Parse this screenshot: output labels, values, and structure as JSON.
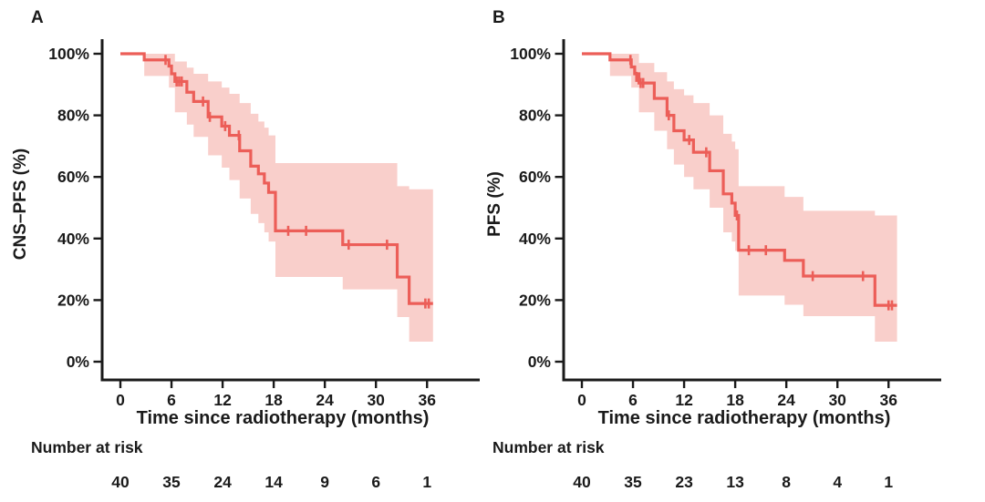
{
  "colors": {
    "curve": "#EC5E58",
    "band": "#F9CFCB",
    "axis": "#1A1A1A",
    "text": "#1A1A1A",
    "background": "#FFFFFF"
  },
  "chart_data": [
    {
      "type": "line",
      "subtype": "kaplan-meier-step",
      "panel": "A",
      "ylabel": "CNS–PFS (%)",
      "xlabel": "Time since radiotherapy (months)",
      "xlim": [
        0,
        42
      ],
      "ylim": [
        0,
        100
      ],
      "x_ticks": {
        "values": [
          0,
          6,
          12,
          18,
          24,
          30,
          36
        ],
        "labels": [
          "0",
          "6",
          "12",
          "18",
          "24",
          "30",
          "36"
        ]
      },
      "y_ticks": {
        "values": [
          100,
          80,
          60,
          40,
          20,
          0
        ],
        "labels": [
          "100%",
          "80%",
          "60%",
          "40%",
          "20%",
          "0%"
        ]
      },
      "grid": false,
      "legend": false,
      "series": [
        {
          "name": "CNS-PFS KM estimate",
          "steps": [
            [
              0,
              100
            ],
            [
              2.8,
              98
            ],
            [
              5.7,
              96
            ],
            [
              6.0,
              93.5
            ],
            [
              6.4,
              91
            ],
            [
              7.8,
              87.5
            ],
            [
              8.6,
              84.5
            ],
            [
              10.3,
              79.5
            ],
            [
              11.9,
              76.5
            ],
            [
              12.8,
              73.5
            ],
            [
              14.0,
              68.5
            ],
            [
              15.3,
              63.5
            ],
            [
              16.2,
              61
            ],
            [
              16.9,
              58
            ],
            [
              17.4,
              55
            ],
            [
              18.2,
              42.5
            ],
            [
              26.1,
              38
            ],
            [
              32.5,
              27.5
            ],
            [
              33.9,
              18.9
            ]
          ],
          "end_time": 36.7,
          "censor_marks": [
            [
              5.3,
              98
            ],
            [
              6.6,
              91
            ],
            [
              6.9,
              91
            ],
            [
              7.2,
              91
            ],
            [
              9.7,
              84.5
            ],
            [
              10.5,
              79.5
            ],
            [
              12.3,
              76.5
            ],
            [
              13.9,
              73.5
            ],
            [
              19.7,
              42.5
            ],
            [
              21.8,
              42.5
            ],
            [
              26.8,
              38
            ],
            [
              31.3,
              38
            ],
            [
              35.8,
              18.9
            ],
            [
              36.2,
              18.9
            ]
          ],
          "ci": [
            [
              0,
              100,
              100
            ],
            [
              2.8,
              92.8,
              100
            ],
            [
              5.7,
              89,
              100
            ],
            [
              6.4,
              81,
              97.5
            ],
            [
              7.8,
              77,
              95.5
            ],
            [
              8.6,
              73,
              93.5
            ],
            [
              10.3,
              67,
              91
            ],
            [
              11.9,
              63,
              89
            ],
            [
              12.8,
              59,
              87
            ],
            [
              14.0,
              53,
              84
            ],
            [
              15.3,
              48,
              80.5
            ],
            [
              16.2,
              45,
              78
            ],
            [
              16.9,
              42,
              76
            ],
            [
              17.4,
              39,
              73.5
            ],
            [
              18.2,
              27.5,
              64.5
            ],
            [
              26.1,
              23.5,
              64.5
            ],
            [
              32.5,
              14.5,
              57
            ],
            [
              33.9,
              6.5,
              56
            ]
          ]
        }
      ],
      "number_at_risk": {
        "label": "Number at risk",
        "times": [
          0,
          6,
          12,
          18,
          24,
          30,
          36
        ],
        "counts": [
          "40",
          "35",
          "24",
          "14",
          "9",
          "6",
          "1"
        ]
      }
    },
    {
      "type": "line",
      "subtype": "kaplan-meier-step",
      "panel": "B",
      "ylabel": "PFS (%)",
      "xlabel": "Time since radiotherapy (months)",
      "xlim": [
        0,
        42
      ],
      "ylim": [
        0,
        100
      ],
      "x_ticks": {
        "values": [
          0,
          6,
          12,
          18,
          24,
          30,
          36
        ],
        "labels": [
          "0",
          "6",
          "12",
          "18",
          "24",
          "30",
          "36"
        ]
      },
      "y_ticks": {
        "values": [
          100,
          80,
          60,
          40,
          20,
          0
        ],
        "labels": [
          "100%",
          "80%",
          "60%",
          "40%",
          "20%",
          "0%"
        ]
      },
      "grid": false,
      "legend": false,
      "series": [
        {
          "name": "PFS KM estimate",
          "steps": [
            [
              0,
              100
            ],
            [
              3.3,
              98
            ],
            [
              5.8,
              95.7
            ],
            [
              6.2,
              93.5
            ],
            [
              6.7,
              90.5
            ],
            [
              8.5,
              85.5
            ],
            [
              10.0,
              80
            ],
            [
              10.8,
              75
            ],
            [
              12.0,
              72
            ],
            [
              13.1,
              68
            ],
            [
              15.0,
              62
            ],
            [
              16.6,
              54.5
            ],
            [
              17.6,
              51.5
            ],
            [
              18.0,
              47.5
            ],
            [
              18.4,
              36.2
            ],
            [
              23.8,
              32.9
            ],
            [
              26.0,
              27.8
            ],
            [
              34.4,
              18.3
            ]
          ],
          "end_time": 37.0,
          "censor_marks": [
            [
              5.7,
              98
            ],
            [
              6.4,
              92.5
            ],
            [
              6.9,
              90.5
            ],
            [
              7.2,
              90.5
            ],
            [
              10.2,
              80
            ],
            [
              12.6,
              72
            ],
            [
              14.6,
              68
            ],
            [
              18.2,
              47.5
            ],
            [
              19.6,
              36.2
            ],
            [
              21.6,
              36.2
            ],
            [
              27.1,
              27.8
            ],
            [
              33.0,
              27.8
            ],
            [
              36.0,
              18.3
            ],
            [
              36.4,
              18.3
            ]
          ],
          "ci": [
            [
              0,
              100,
              100
            ],
            [
              3.3,
              92.8,
              100
            ],
            [
              5.8,
              89,
              100
            ],
            [
              6.7,
              81,
              97
            ],
            [
              8.5,
              75,
              94
            ],
            [
              10.0,
              69,
              91
            ],
            [
              10.8,
              64,
              88.5
            ],
            [
              12.0,
              60,
              86.5
            ],
            [
              13.1,
              56,
              84
            ],
            [
              15.0,
              50,
              80
            ],
            [
              16.6,
              42,
              74
            ],
            [
              17.6,
              39,
              71.5
            ],
            [
              18.0,
              36,
              69
            ],
            [
              18.4,
              21.5,
              57
            ],
            [
              23.8,
              18.5,
              53.5
            ],
            [
              26.0,
              14.8,
              49
            ],
            [
              34.4,
              6.5,
              47.5
            ]
          ]
        }
      ],
      "number_at_risk": {
        "label": "Number at risk",
        "times": [
          0,
          6,
          12,
          18,
          24,
          30,
          36
        ],
        "counts": [
          "40",
          "35",
          "23",
          "13",
          "8",
          "4",
          "1"
        ]
      }
    }
  ]
}
